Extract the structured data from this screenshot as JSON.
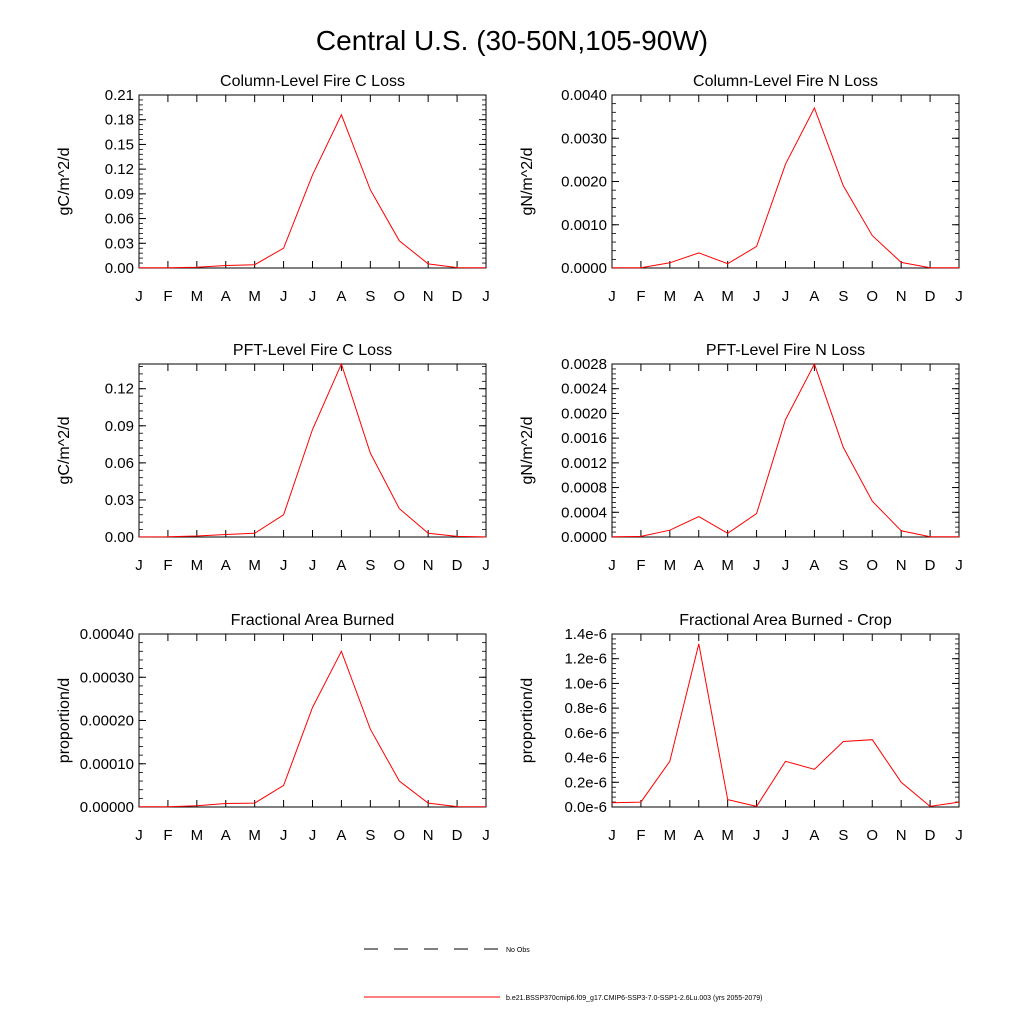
{
  "figure": {
    "title": "Central U.S. (30-50N,105-90W)"
  },
  "legend": {
    "entries": [
      {
        "label": "No Obs",
        "style": "dashed",
        "color": "#000000"
      },
      {
        "label": "b.e21.BSSP370cmip6.f09_g17.CMIP6-SSP3-7.0-SSP1-2.6Lu.003 (yrs 2055-2079)",
        "style": "solid",
        "color": "#ff0000"
      }
    ]
  },
  "chart_data": [
    {
      "type": "line",
      "title": "Column-Level Fire C Loss",
      "xlabel": "",
      "ylabel": "gC/m^2/d",
      "categories": [
        "J",
        "F",
        "M",
        "A",
        "M",
        "J",
        "J",
        "A",
        "S",
        "O",
        "N",
        "D",
        "J"
      ],
      "ylim": [
        0,
        0.21
      ],
      "yticks": [
        "0.00",
        "0.03",
        "0.06",
        "0.09",
        "0.12",
        "0.15",
        "0.18",
        "0.21"
      ],
      "series": [
        {
          "color": "#ff0000",
          "values": [
            0.0002,
            0.0002,
            0.001,
            0.003,
            0.004,
            0.024,
            0.113,
            0.186,
            0.095,
            0.033,
            0.005,
            0.0005,
            0.0002
          ]
        }
      ]
    },
    {
      "type": "line",
      "title": "Column-Level Fire N Loss",
      "xlabel": "",
      "ylabel": "gN/m^2/d",
      "categories": [
        "J",
        "F",
        "M",
        "A",
        "M",
        "J",
        "J",
        "A",
        "S",
        "O",
        "N",
        "D",
        "J"
      ],
      "ylim": [
        0,
        0.004
      ],
      "yticks": [
        "0.0000",
        "0.0010",
        "0.0020",
        "0.0030",
        "0.0040"
      ],
      "series": [
        {
          "color": "#ff0000",
          "values": [
            5e-06,
            5e-06,
            0.00012,
            0.00035,
            0.0001,
            0.0005,
            0.0024,
            0.0037,
            0.0019,
            0.00075,
            0.00013,
            5e-06,
            5e-06
          ]
        }
      ]
    },
    {
      "type": "line",
      "title": "PFT-Level Fire C Loss",
      "xlabel": "",
      "ylabel": "gC/m^2/d",
      "categories": [
        "J",
        "F",
        "M",
        "A",
        "M",
        "J",
        "J",
        "A",
        "S",
        "O",
        "N",
        "D",
        "J"
      ],
      "ylim": [
        0,
        0.14
      ],
      "yticks": [
        "0.00",
        "0.03",
        "0.06",
        "0.09",
        "0.12"
      ],
      "series": [
        {
          "color": "#ff0000",
          "values": [
            0.0001,
            0.0002,
            0.0008,
            0.002,
            0.003,
            0.018,
            0.087,
            0.14,
            0.068,
            0.023,
            0.003,
            0.0005,
            0.0001
          ]
        }
      ]
    },
    {
      "type": "line",
      "title": "PFT-Level Fire N Loss",
      "xlabel": "",
      "ylabel": "gN/m^2/d",
      "categories": [
        "J",
        "F",
        "M",
        "A",
        "M",
        "J",
        "J",
        "A",
        "S",
        "O",
        "N",
        "D",
        "J"
      ],
      "ylim": [
        0,
        0.0028
      ],
      "yticks": [
        "0.0000",
        "0.0004",
        "0.0008",
        "0.0012",
        "0.0016",
        "0.0020",
        "0.0024",
        "0.0028"
      ],
      "series": [
        {
          "color": "#ff0000",
          "values": [
            5e-06,
            1e-05,
            0.00011,
            0.00033,
            6e-05,
            0.00038,
            0.0019,
            0.0028,
            0.00145,
            0.00058,
            0.0001,
            5e-06,
            5e-06
          ]
        }
      ]
    },
    {
      "type": "line",
      "title": "Fractional Area Burned",
      "xlabel": "",
      "ylabel": "proportion/d",
      "categories": [
        "J",
        "F",
        "M",
        "A",
        "M",
        "J",
        "J",
        "A",
        "S",
        "O",
        "N",
        "D",
        "J"
      ],
      "ylim": [
        0,
        0.0004
      ],
      "yticks": [
        "0.00000",
        "0.00010",
        "0.00020",
        "0.00030",
        "0.00040"
      ],
      "series": [
        {
          "color": "#ff0000",
          "values": [
            5e-07,
            5e-07,
            3e-06,
            8e-06,
            9e-06,
            5e-05,
            0.00023,
            0.00036,
            0.00018,
            6e-05,
            9e-06,
            1e-06,
            5e-07
          ]
        }
      ]
    },
    {
      "type": "line",
      "title": "Fractional Area Burned - Crop",
      "xlabel": "",
      "ylabel": "proportion/d",
      "categories": [
        "J",
        "F",
        "M",
        "A",
        "M",
        "J",
        "J",
        "A",
        "S",
        "O",
        "N",
        "D",
        "J"
      ],
      "ylim": [
        0,
        1.4e-06
      ],
      "yticks": [
        "0.0e-6",
        "0.2e-6",
        "0.4e-6",
        "0.6e-6",
        "0.8e-6",
        "1.0e-6",
        "1.2e-6",
        "1.4e-6"
      ],
      "series": [
        {
          "color": "#ff0000",
          "values": [
            3.5e-08,
            4e-08,
            3.7e-07,
            1.32e-06,
            6e-08,
            5e-09,
            3.7e-07,
            3.05e-07,
            5.3e-07,
            5.45e-07,
            2e-07,
            5e-09,
            4e-08
          ]
        }
      ]
    }
  ]
}
